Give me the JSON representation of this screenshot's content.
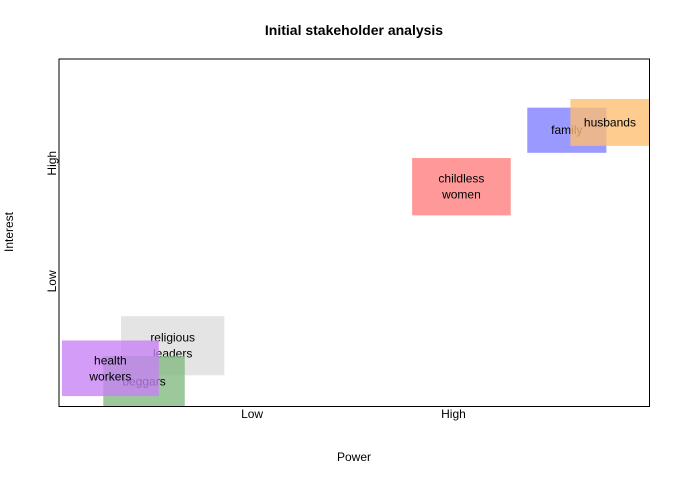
{
  "chart_data": {
    "type": "rect",
    "title": "Initial stakeholder analysis",
    "xlabel": "Power",
    "ylabel": "Interest",
    "xlim": [
      0,
      10
    ],
    "ylim": [
      0,
      10
    ],
    "x_ticks": [
      {
        "value": 3.27,
        "label": "Low"
      },
      {
        "value": 6.68,
        "label": "High"
      }
    ],
    "y_ticks": [
      {
        "value": 3.6,
        "label": "Low"
      },
      {
        "value": 7.0,
        "label": "High"
      }
    ],
    "grid": false,
    "legend": "none",
    "stakeholders": [
      {
        "name": "religious leaders",
        "lines": [
          "religious",
          "leaders"
        ],
        "x_min": 1.05,
        "x_max": 2.8,
        "y_min": 0.9,
        "y_max": 2.6,
        "color": "#dcdcdc"
      },
      {
        "name": "beggars",
        "lines": [
          "beggars"
        ],
        "x_min": 0.75,
        "x_max": 2.13,
        "y_min": 0.0,
        "y_max": 1.45,
        "color": "#80b880"
      },
      {
        "name": "health workers",
        "lines": [
          "health",
          "workers"
        ],
        "x_min": 0.05,
        "x_max": 1.69,
        "y_min": 0.3,
        "y_max": 1.9,
        "color": "#c680f5"
      },
      {
        "name": "childless women",
        "lines": [
          "childless",
          "women"
        ],
        "x_min": 5.98,
        "x_max": 7.65,
        "y_min": 5.5,
        "y_max": 7.15,
        "color": "#ff7c7c"
      },
      {
        "name": "family",
        "lines": [
          "family"
        ],
        "x_min": 7.93,
        "x_max": 9.27,
        "y_min": 7.3,
        "y_max": 8.6,
        "color": "#7c7cff"
      },
      {
        "name": "husbands",
        "lines": [
          "husbands"
        ],
        "x_min": 8.66,
        "x_max": 10.0,
        "y_min": 7.5,
        "y_max": 8.85,
        "color": "#ffbe70"
      }
    ]
  }
}
